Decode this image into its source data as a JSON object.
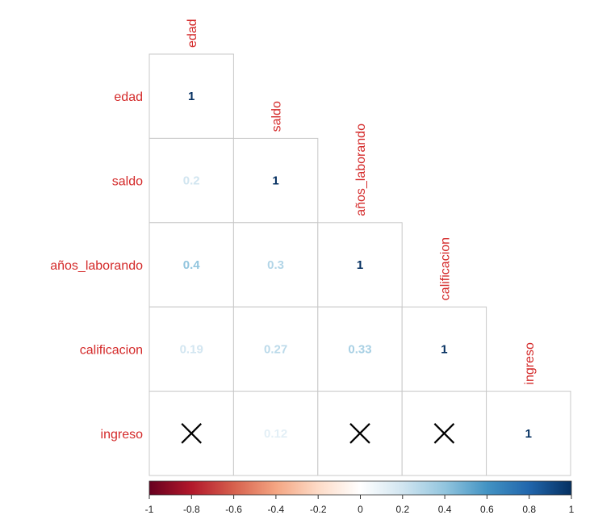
{
  "chart_data": {
    "type": "heatmap",
    "subtype": "correlation-lower-triangle",
    "variables": [
      "edad",
      "saldo",
      "años_laborando",
      "calificacion",
      "ingreso"
    ],
    "matrix": [
      [
        1,
        null,
        null,
        null,
        null
      ],
      [
        0.2,
        1,
        null,
        null,
        null
      ],
      [
        0.4,
        0.3,
        1,
        null,
        null
      ],
      [
        0.19,
        0.27,
        0.33,
        1,
        null
      ],
      [
        null,
        0.12,
        null,
        null,
        1
      ]
    ],
    "value_labels": [
      [
        "1",
        "",
        "",
        "",
        ""
      ],
      [
        "0.2",
        "1",
        "",
        "",
        ""
      ],
      [
        "0.4",
        "0.3",
        "1",
        "",
        ""
      ],
      [
        "0.19",
        "0.27",
        "0.33",
        "1",
        ""
      ],
      [
        "",
        "0.12",
        "",
        "",
        "1"
      ]
    ],
    "insignificant_marker": "X",
    "insignificant": [
      [
        4,
        0
      ],
      [
        4,
        2
      ],
      [
        4,
        3
      ]
    ],
    "colorbar": {
      "orientation": "horizontal",
      "range": [
        -1,
        1
      ],
      "ticks": [
        -1,
        -0.8,
        -0.6,
        -0.4,
        -0.2,
        0,
        0.2,
        0.4,
        0.6,
        0.8,
        1
      ],
      "tick_labels": [
        "-1",
        "-0.8",
        "-0.6",
        "-0.4",
        "-0.2",
        "0",
        "0.2",
        "0.4",
        "0.6",
        "0.8",
        "1"
      ]
    },
    "colors": {
      "label": "#d42a2a",
      "grid": "#c8c8c8",
      "scale": [
        "#67001f",
        "#b2182b",
        "#d6604d",
        "#f4a582",
        "#fddbc7",
        "#ffffff",
        "#d1e5f0",
        "#92c5de",
        "#4393c3",
        "#2166ac",
        "#053061"
      ]
    }
  }
}
